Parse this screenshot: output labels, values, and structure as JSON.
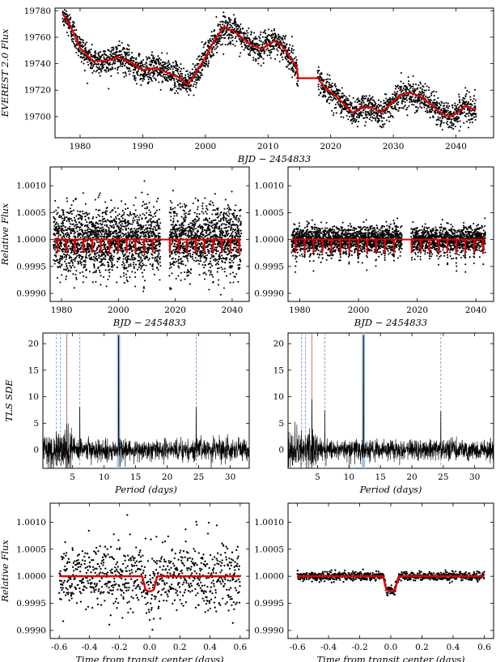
{
  "chart_data": [
    {
      "id": "p1",
      "type": "scatter",
      "title": "",
      "xlabel": "BJD − 2454833",
      "ylabel": "EVEREST 2.0 Flux",
      "xlim": [
        1976,
        2046
      ],
      "ylim": [
        19684,
        19782
      ],
      "xticks": [
        1980,
        1990,
        2000,
        2010,
        2020,
        2030,
        2040
      ],
      "yticks": [
        19700,
        19720,
        19740,
        19760,
        19780
      ],
      "gaps": [
        [
          2014.8,
          2017.9
        ]
      ],
      "model_knots": [
        [
          1977.2,
          19778
        ],
        [
          1978.5,
          19768
        ],
        [
          1980,
          19752
        ],
        [
          1982,
          19742
        ],
        [
          1984,
          19742
        ],
        [
          1986,
          19745
        ],
        [
          1988,
          19741
        ],
        [
          1990,
          19735
        ],
        [
          1992,
          19737
        ],
        [
          1994,
          19733
        ],
        [
          1996,
          19729
        ],
        [
          1997.2,
          19724
        ],
        [
          1998.5,
          19733
        ],
        [
          2000,
          19745
        ],
        [
          2001.5,
          19758
        ],
        [
          2003,
          19768
        ],
        [
          2005,
          19763
        ],
        [
          2007,
          19755
        ],
        [
          2009,
          19751
        ],
        [
          2011,
          19757
        ],
        [
          2012,
          19755
        ],
        [
          2013.5,
          19745
        ],
        [
          2014.6,
          19737
        ],
        [
          2014.8,
          19729
        ],
        [
          2018,
          19729
        ],
        [
          2019,
          19722
        ],
        [
          2020.5,
          19717
        ],
        [
          2022,
          19710
        ],
        [
          2023.5,
          19703
        ],
        [
          2025,
          19707
        ],
        [
          2026.5,
          19707
        ],
        [
          2028,
          19703
        ],
        [
          2029.5,
          19709
        ],
        [
          2031,
          19716
        ],
        [
          2032.5,
          19718
        ],
        [
          2034,
          19716
        ],
        [
          2036,
          19709
        ],
        [
          2037.5,
          19703
        ],
        [
          2039,
          19700
        ],
        [
          2040,
          19702
        ],
        [
          2041.5,
          19708
        ],
        [
          2043.2,
          19705
        ]
      ],
      "model_color": "#e00000"
    },
    {
      "id": "p2",
      "type": "scatter",
      "xlabel": "BJD − 2454833",
      "ylabel": "Relative Flux",
      "xlim": [
        1976,
        2046
      ],
      "ylim": [
        0.99885,
        1.00135
      ],
      "xticks": [
        1980,
        2000,
        2020,
        2040
      ],
      "yticks": [
        0.999,
        0.9995,
        1.0,
        1.0005,
        1.001
      ],
      "noise": 0.0003,
      "depth": 0.00025,
      "period": 3.04,
      "t0": 1978.6,
      "model_color": "#e00000"
    },
    {
      "id": "p3",
      "type": "scatter",
      "xlabel": "BJD − 2454833",
      "ylabel": "",
      "xlim": [
        1976,
        2046
      ],
      "ylim": [
        0.99885,
        1.00135
      ],
      "xticks": [
        1980,
        2000,
        2020,
        2040
      ],
      "yticks": [
        0.999,
        0.9995,
        1.0,
        1.0005,
        1.001
      ],
      "noise": 0.00012,
      "depth": 0.00025,
      "period": 3.04,
      "t0": 1978.6,
      "model_color": "#e00000"
    },
    {
      "id": "p4",
      "type": "line",
      "xlabel": "Period (days)",
      "ylabel": "TLS SDE",
      "xlim": [
        0.3,
        33
      ],
      "ylim": [
        -3.5,
        22
      ],
      "xticks": [
        5,
        10,
        15,
        20,
        25,
        30
      ],
      "yticks": [
        0,
        5,
        10,
        15,
        20
      ],
      "best_period": 12.3,
      "harmonics_dashed": [
        2.46,
        3.08,
        4.1,
        6.15,
        24.6
      ],
      "red_line": 4.1,
      "peaks": [
        [
          12.3,
          21.5
        ],
        [
          6.15,
          8.0
        ],
        [
          24.6,
          8.0
        ],
        [
          4.1,
          4.8
        ]
      ]
    },
    {
      "id": "p5",
      "type": "line",
      "xlabel": "Period (days)",
      "ylabel": "",
      "xlim": [
        0.3,
        33
      ],
      "ylim": [
        -3.5,
        22
      ],
      "xticks": [
        5,
        10,
        15,
        20,
        25,
        30
      ],
      "yticks": [
        0,
        5,
        10,
        15,
        20
      ],
      "best_period": 12.3,
      "harmonics_dashed": [
        2.46,
        3.08,
        6.15,
        24.6
      ],
      "red_line": 4.1,
      "peaks": [
        [
          12.3,
          21.5
        ],
        [
          6.15,
          7.4
        ],
        [
          24.6,
          7.2
        ],
        [
          4.1,
          9.5
        ]
      ]
    },
    {
      "id": "p6",
      "type": "scatter",
      "xlabel": "Time from transit center (days)",
      "ylabel": "Relative Flux",
      "xlim": [
        -0.66,
        0.66
      ],
      "ylim": [
        0.99885,
        1.00135
      ],
      "xticks": [
        -0.6,
        -0.4,
        -0.2,
        0.0,
        0.2,
        0.4,
        0.6
      ],
      "yticks": [
        0.999,
        0.9995,
        1.0,
        1.0005,
        1.001
      ],
      "noise": 0.0003,
      "depth": 0.00028,
      "duration": 0.1,
      "model_color": "#e00000"
    },
    {
      "id": "p7",
      "type": "scatter",
      "xlabel": "Time from transit center (days)",
      "ylabel": "",
      "xlim": [
        -0.66,
        0.66
      ],
      "ylim": [
        0.99885,
        1.00135
      ],
      "xticks": [
        -0.6,
        -0.4,
        -0.2,
        0.0,
        0.2,
        0.4,
        0.6
      ],
      "yticks": [
        0.999,
        0.9995,
        1.0,
        1.0005,
        1.001
      ],
      "noise": 4e-05,
      "depth": 0.00028,
      "duration": 0.1,
      "model_color": "#e00000"
    }
  ]
}
